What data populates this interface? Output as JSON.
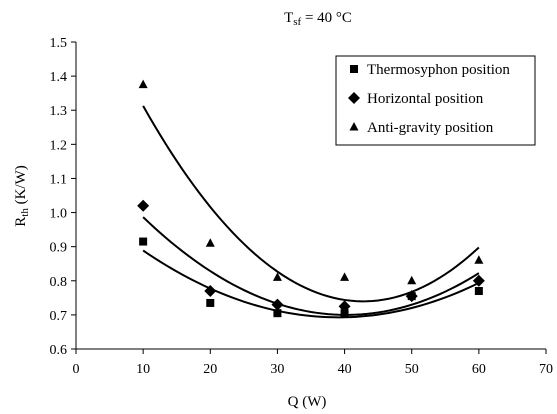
{
  "chart_data": {
    "type": "scatter",
    "title_main": "T",
    "title_sub": "sf",
    "title_rest": " = 40 °C",
    "xlabel": "Q (W)",
    "ylabel_main": "R",
    "ylabel_sub": "th",
    "ylabel_rest": " (K/W)",
    "xlim": [
      0,
      70
    ],
    "ylim": [
      0.6,
      1.5
    ],
    "x_ticks": [
      "0",
      "10",
      "20",
      "30",
      "40",
      "50",
      "60",
      "70"
    ],
    "y_ticks": [
      "0.6",
      "0.7",
      "0.8",
      "0.9",
      "1.0",
      "1.1",
      "1.2",
      "1.3",
      "1.4",
      "1.5"
    ],
    "grid": false,
    "legend_position": "top-right",
    "series": [
      {
        "name": "Thermosyphon position",
        "marker": "square",
        "x": [
          10,
          20,
          30,
          40,
          50,
          60
        ],
        "y": [
          0.915,
          0.735,
          0.705,
          0.705,
          0.755,
          0.77
        ],
        "trend": "quadratic"
      },
      {
        "name": "Horizontal position",
        "marker": "diamond",
        "x": [
          10,
          20,
          30,
          40,
          50,
          60
        ],
        "y": [
          1.02,
          0.77,
          0.73,
          0.725,
          0.755,
          0.8
        ],
        "trend": "quadratic"
      },
      {
        "name": "Anti-gravity position",
        "marker": "triangle",
        "x": [
          10,
          20,
          30,
          40,
          50,
          60
        ],
        "y": [
          1.375,
          0.91,
          0.81,
          0.81,
          0.8,
          0.86
        ],
        "trend": "quadratic"
      }
    ]
  }
}
